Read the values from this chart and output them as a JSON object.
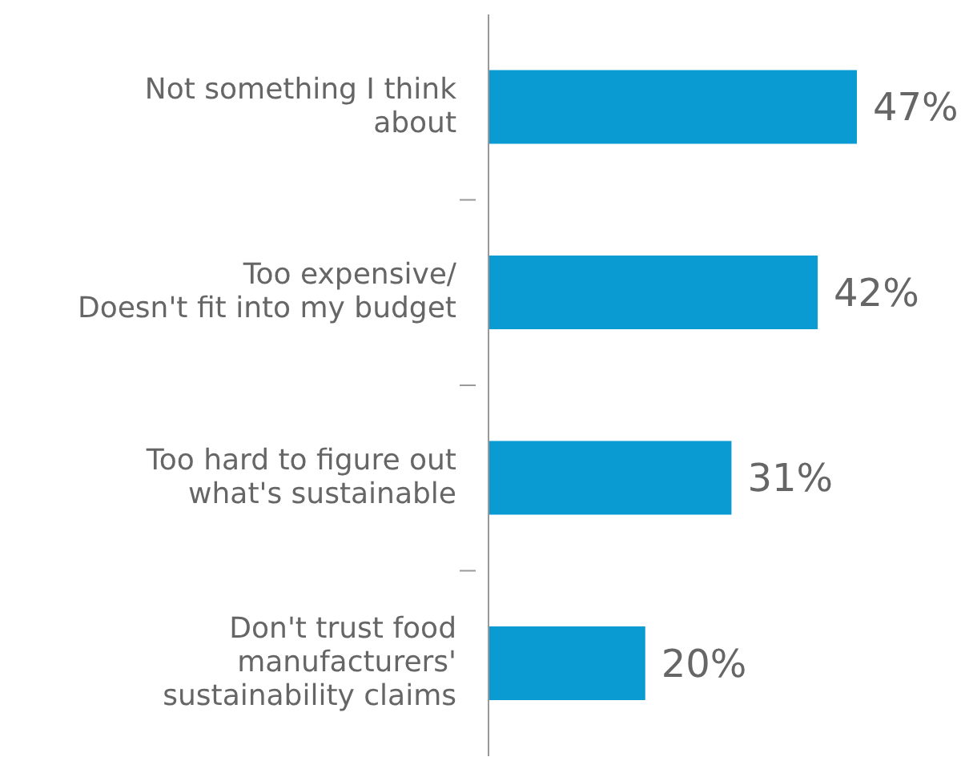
{
  "chart_data": {
    "type": "bar",
    "orientation": "horizontal",
    "categories": [
      "Not something I think\nabout",
      "Too expensive/\nDoesn't fit into my budget",
      "Too hard to figure out\nwhat's sustainable",
      "Don't trust food\nmanufacturers'\nsustainability claims"
    ],
    "values": [
      47,
      42,
      31,
      20
    ],
    "value_labels": [
      "47%",
      "42%",
      "31%",
      "20%"
    ],
    "color": "#0a9bd2",
    "grid": false,
    "legend": false,
    "tick_labels": "y"
  }
}
